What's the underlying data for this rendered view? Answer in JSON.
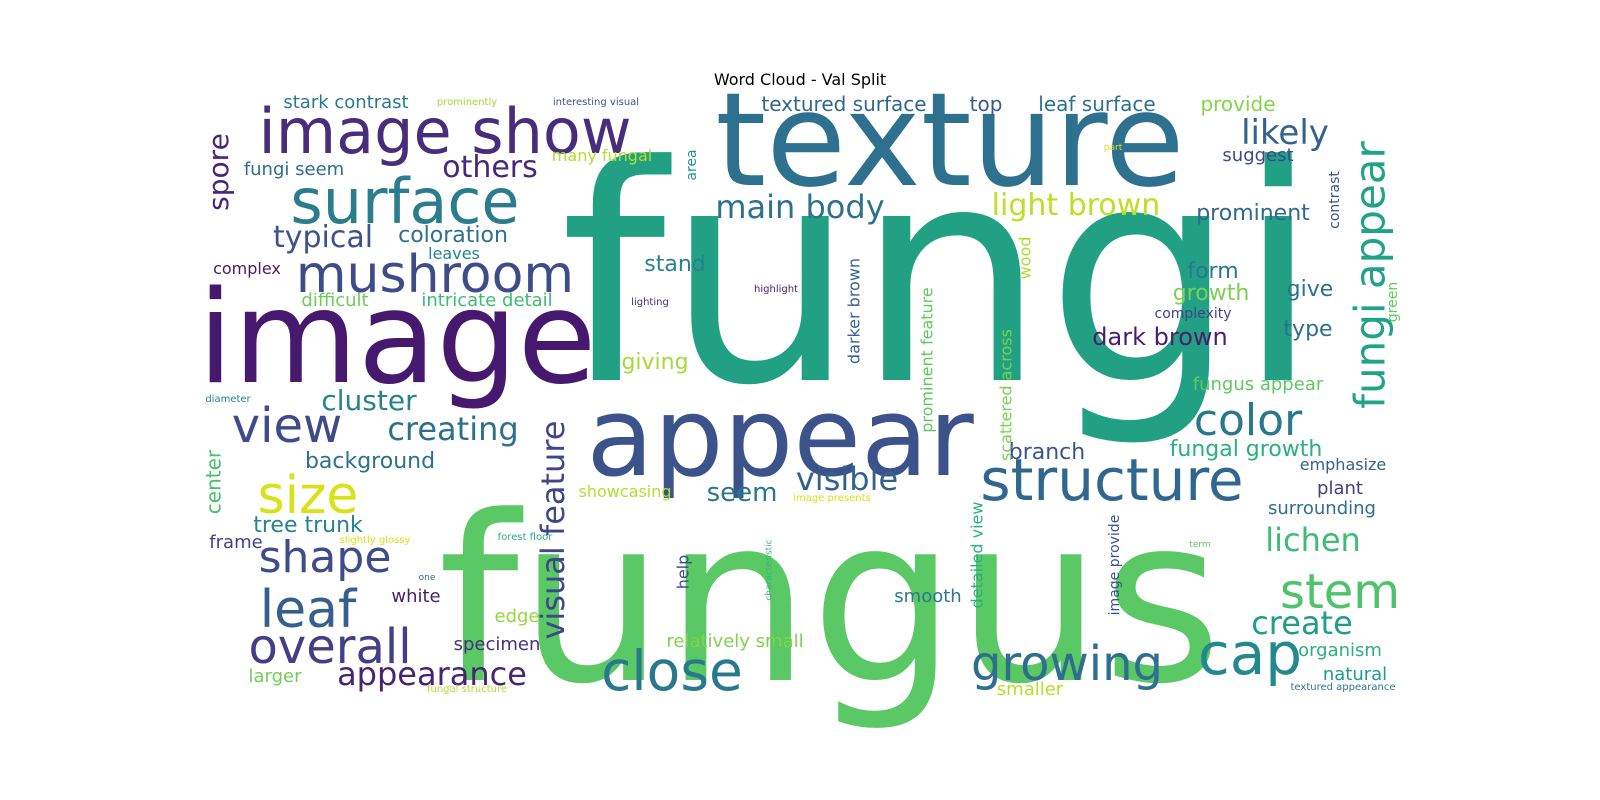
{
  "title": "Word Cloud - Val Split",
  "words": [
    {
      "text": "fungi",
      "color": "#21a083"
    },
    {
      "text": "fungus",
      "color": "#5ac864"
    },
    {
      "text": "texture",
      "color": "#2d718e"
    },
    {
      "text": "image",
      "color": "#46186e"
    },
    {
      "text": "appear",
      "color": "#3b528b"
    },
    {
      "text": "image show",
      "color": "#472d7b"
    },
    {
      "text": "surface",
      "color": "#2b7d8e"
    },
    {
      "text": "structure",
      "color": "#31678e"
    },
    {
      "text": "mushroom",
      "color": "#3e4c8a"
    },
    {
      "text": "close",
      "color": "#29798e"
    },
    {
      "text": "view",
      "color": "#3e4a89"
    },
    {
      "text": "overall",
      "color": "#433e85"
    },
    {
      "text": "growing",
      "color": "#2e6e8e"
    },
    {
      "text": "cap",
      "color": "#23898e"
    },
    {
      "text": "stem",
      "color": "#4ec36b"
    },
    {
      "text": "size",
      "color": "#d8e219"
    },
    {
      "text": "leaf",
      "color": "#355f8d"
    },
    {
      "text": "shape",
      "color": "#3e4c8a"
    },
    {
      "text": "color",
      "color": "#2a788e"
    },
    {
      "text": "fungi appear",
      "color": "#20a386"
    },
    {
      "text": "appearance",
      "color": "#482475"
    },
    {
      "text": "visual feature",
      "color": "#3f4788"
    },
    {
      "text": "main body",
      "color": "#2c728e"
    },
    {
      "text": "light brown",
      "color": "#bddf26"
    },
    {
      "text": "likely",
      "color": "#33638d"
    },
    {
      "text": "creating",
      "color": "#2d708e"
    },
    {
      "text": "typical",
      "color": "#3b528b"
    },
    {
      "text": "others",
      "color": "#482878"
    },
    {
      "text": "visible",
      "color": "#33628d"
    },
    {
      "text": "lichen",
      "color": "#3dbc74"
    },
    {
      "text": "create",
      "color": "#1f9e89"
    },
    {
      "text": "cluster",
      "color": "#26828e"
    },
    {
      "text": "spore",
      "color": "#482677"
    },
    {
      "text": "seem",
      "color": "#2a768e"
    },
    {
      "text": "fungal growth",
      "color": "#2ab07f"
    },
    {
      "text": "dark brown",
      "color": "#481f70"
    },
    {
      "text": "background",
      "color": "#2c728e"
    },
    {
      "text": "tree trunk",
      "color": "#25848e"
    },
    {
      "text": "coloration",
      "color": "#2d718e"
    },
    {
      "text": "prominent",
      "color": "#31688e"
    },
    {
      "text": "branch",
      "color": "#3a548c"
    },
    {
      "text": "stand",
      "color": "#26828e"
    },
    {
      "text": "form",
      "color": "#2a788e"
    },
    {
      "text": "growth",
      "color": "#7ad151"
    },
    {
      "text": "giving",
      "color": "#a5db36"
    },
    {
      "text": "textured surface",
      "color": "#31678e"
    },
    {
      "text": "top",
      "color": "#355e8d"
    },
    {
      "text": "leaf surface",
      "color": "#2c718e"
    },
    {
      "text": "provide",
      "color": "#86d549"
    },
    {
      "text": "stark contrast",
      "color": "#2a788e"
    },
    {
      "text": "fungi seem",
      "color": "#2f6c8e"
    },
    {
      "text": "many fungal",
      "color": "#b5de2b"
    },
    {
      "text": "suggest",
      "color": "#3e4989"
    },
    {
      "text": "give",
      "color": "#2c728e"
    },
    {
      "text": "type",
      "color": "#2e6f8e"
    },
    {
      "text": "center",
      "color": "#44bf70"
    },
    {
      "text": "frame",
      "color": "#414487"
    },
    {
      "text": "white",
      "color": "#482071"
    },
    {
      "text": "edge",
      "color": "#94d840"
    },
    {
      "text": "specimen",
      "color": "#472f7d"
    },
    {
      "text": "relatively small",
      "color": "#7fd34e"
    },
    {
      "text": "smooth",
      "color": "#2a788e"
    },
    {
      "text": "larger",
      "color": "#70cf57"
    },
    {
      "text": "fungus appear",
      "color": "#5ec962"
    },
    {
      "text": "emphasize",
      "color": "#355f8d"
    },
    {
      "text": "plant",
      "color": "#423f85"
    },
    {
      "text": "surrounding",
      "color": "#2d708e"
    },
    {
      "text": "organism",
      "color": "#2ab07f"
    },
    {
      "text": "natural",
      "color": "#1e9b8a"
    },
    {
      "text": "smaller",
      "color": "#b8de29"
    },
    {
      "text": "showcasing",
      "color": "#b2dd2d"
    },
    {
      "text": "help",
      "color": "#3e4989"
    },
    {
      "text": "complex",
      "color": "#481a6c"
    },
    {
      "text": "difficult",
      "color": "#6ccd5a"
    },
    {
      "text": "intricate detail",
      "color": "#3dbc74"
    },
    {
      "text": "leaves",
      "color": "#25838e"
    },
    {
      "text": "darker brown",
      "color": "#33638d"
    },
    {
      "text": "prominent feature",
      "color": "#5ec962"
    },
    {
      "text": "scattered across",
      "color": "#7ad151"
    },
    {
      "text": "detailed view",
      "color": "#2ab07f"
    },
    {
      "text": "image provide",
      "color": "#3b528b"
    },
    {
      "text": "wood",
      "color": "#addc30"
    },
    {
      "text": "area",
      "color": "#21918c"
    },
    {
      "text": "contrast",
      "color": "#3b528b"
    },
    {
      "text": "green",
      "color": "#5ec962"
    },
    {
      "text": "complexity",
      "color": "#414487"
    },
    {
      "text": "textured appearance",
      "color": "#2a788e"
    },
    {
      "text": "prominently",
      "color": "#a0da39"
    },
    {
      "text": "interesting visual",
      "color": "#3b528b"
    },
    {
      "text": "part",
      "color": "#d8e219"
    },
    {
      "text": "highlight",
      "color": "#481a6c"
    },
    {
      "text": "lighting",
      "color": "#472d7b"
    },
    {
      "text": "diameter",
      "color": "#26828e"
    },
    {
      "text": "image presents",
      "color": "#d8e219"
    },
    {
      "text": "slightly glossy",
      "color": "#d8e219"
    },
    {
      "text": "forest floor",
      "color": "#2ab07f"
    },
    {
      "text": "one",
      "color": "#31688e"
    },
    {
      "text": "characteristic",
      "color": "#35b779"
    },
    {
      "text": "term",
      "color": "#5ec962"
    },
    {
      "text": "fungal structure",
      "color": "#b5de2b"
    }
  ]
}
